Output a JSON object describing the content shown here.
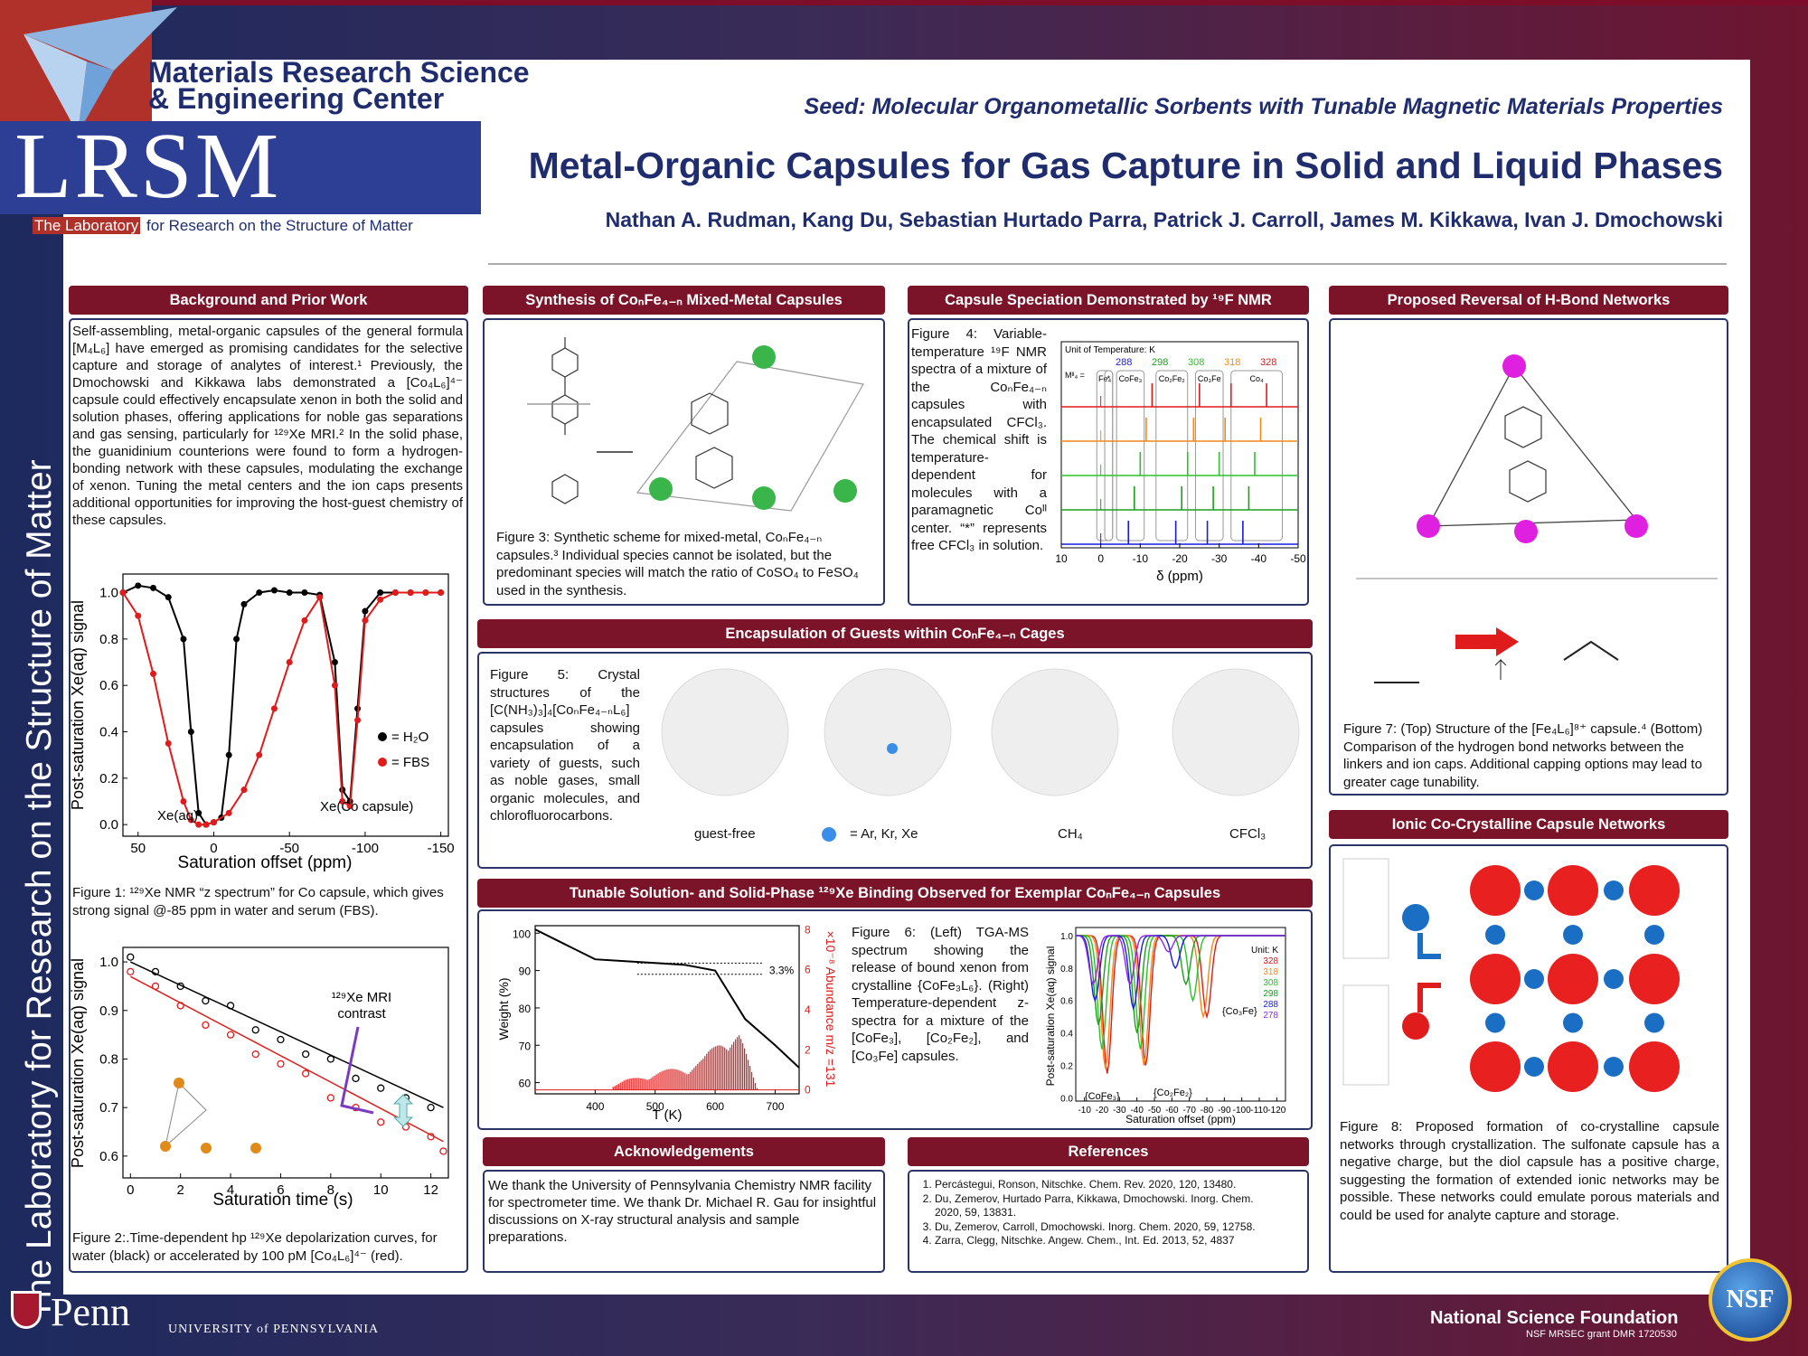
{
  "header": {
    "center_line1": "Materials Research Science",
    "center_line2": "& Engineering Center",
    "lrsm": "LRSM",
    "lab_prefix": "The Laboratory",
    "lab_rest": " for Research on the Structure of Matter",
    "seed": "Seed: Molecular Organometallic Sorbents with Tunable Magnetic Materials Properties",
    "title": "Metal-Organic Capsules for Gas Capture in Solid and Liquid Phases",
    "authors": "Nathan A. Rudman, Kang Du, Sebastian Hurtado Parra, Patrick J. Carroll, James M. Kikkawa, Ivan J. Dmochowski"
  },
  "vertical_text": "The Laboratory for Research on the Structure of Matter",
  "sections": {
    "background": "Background and Prior Work",
    "synthesis": "Synthesis of CoₙFe₄₋ₙ Mixed-Metal Capsules",
    "speciation": "Capsule Speciation Demonstrated by ¹⁹F NMR",
    "reversal": "Proposed Reversal of H-Bond Networks",
    "encapsulation": "Encapsulation of Guests within CoₙFe₄₋ₙ Cages",
    "tunable": "Tunable Solution- and Solid-Phase ¹²⁹Xe Binding Observed for Exemplar CoₙFe₄₋ₙ Capsules",
    "ionic": "Ionic Co-Crystalline Capsule Networks",
    "ack": "Acknowledgements",
    "refs": "References"
  },
  "background_text": "Self-assembling, metal-organic capsules of the general formula [M₄L₆] have emerged as promising candidates for the selective capture and storage of analytes of interest.¹ Previously, the Dmochowski and Kikkawa labs demonstrated a [Co₄L₆]⁴⁻ capsule could effectively encapsulate xenon in both the solid and solution phases, offering applications for noble gas separations and gas sensing, particularly for ¹²⁹Xe MRI.² In the solid phase, the guanidinium counterions were found to form a hydrogen-bonding network with these capsules, modulating the exchange of xenon. Tuning the metal centers and the ion caps presents additional opportunities for improving the host-guest chemistry of these capsules.",
  "figures": {
    "fig1": "Figure 1: ¹²⁹Xe NMR “z spectrum” for Co capsule, which gives strong signal @-85 ppm in water and serum (FBS).",
    "fig2": "Figure 2:.Time-dependent hp ¹²⁹Xe depolarization curves, for water (black) or accelerated by 100 pM [Co₄L₆]⁴⁻ (red).",
    "fig3": "Figure 3: Synthetic scheme for mixed-metal, CoₙFe₄₋ₙ capsules.³ Individual species cannot be isolated, but the predominant species will match the ratio of CoSO₄ to FeSO₄ used in the synthesis.",
    "fig4": "Figure 4: Variable-temperature ¹⁹F NMR spectra of a mixture of the CoₙFe₄₋ₙ capsules with encapsulated CFCl₃. The chemical shift is temperature-dependent for molecules with a paramagnetic Coᴵᴵ center. “*” represents free CFCl₃ in solution.",
    "fig5": "Figure 5: Crystal structures of the [C(NH₃)₃]₄[CoₙFe₄₋ₙL₆] capsules showing encapsulation of a variety of guests, such as noble gases, small organic molecules, and chlorofluorocarbons.",
    "fig6": "Figure 6: (Left) TGA-MS spectrum showing the release of bound xenon from crystalline {CoFe₃L₆}. (Right) Temperature-dependent z-spectra for a mixture of the [CoFe₃], [Co₂Fe₂], and [Co₃Fe] capsules.",
    "fig7": "Figure 7: (Top) Structure of the [Fe₄L₆]⁸⁺ capsule.⁴ (Bottom) Comparison of the hydrogen bond networks between the linkers and ion caps. Additional capping options may lead to greater cage tunability.",
    "fig8": "Figure 8: Proposed formation of co-crystalline capsule networks through crystallization. The sulfonate capsule has a negative charge, but the diol capsule has a positive charge, suggesting the formation of extended ionic networks may be possible. These networks could emulate porous materials and could be used for analyte capture and storage."
  },
  "guest_labels": [
    "guest-free",
    "= Ar, Kr, Xe",
    "CH₄",
    "CFCl₃"
  ],
  "ack_text": "We thank the University of Pennsylvania Chemistry NMR facility for spectrometer time. We thank Dr. Michael R. Gau for insightful discussions on X-ray structural analysis and sample preparations.",
  "references": [
    "Percástegui, Ronson, Nitschke. Chem. Rev. 2020, 120, 13480.",
    "Du, Zemerov, Hurtado Parra, Kikkawa, Dmochowski. Inorg. Chem. 2020, 59, 13831.",
    "Du, Zemerov, Carroll, Dmochowski. Inorg. Chem. 2020, 59, 12758.",
    "Zarra, Clegg, Nitschke. Angew. Chem., Int. Ed. 2013, 52, 4837"
  ],
  "footer": {
    "penn": "Penn",
    "upenn": "UNIVERSITY of PENNSYLVANIA",
    "nsf": "National Science Foundation",
    "grant": "NSF MRSEC grant DMR 1720530",
    "nsf_logo": "NSF"
  },
  "colors": {
    "maroon": "#7c1429",
    "navy": "#1f2d6e",
    "red": "#e01b1b"
  },
  "chart_data": [
    {
      "type": "line",
      "title": "",
      "xlabel": "Saturation offset (ppm)",
      "ylabel": "Post-saturation Xe(aq) signal",
      "xlim": [
        60,
        -155
      ],
      "ylim": [
        -0.05,
        1.08
      ],
      "xticks": [
        50,
        0,
        -50,
        -100,
        -150
      ],
      "yticks": [
        0.0,
        0.2,
        0.4,
        0.6,
        0.8,
        1.0
      ],
      "annotations": [
        "Xe(aq)",
        "Xe(Co capsule)"
      ],
      "series": [
        {
          "name": "= H₂O",
          "color": "#000000",
          "x": [
            60,
            50,
            40,
            30,
            20,
            15,
            10,
            5,
            0,
            -5,
            -10,
            -15,
            -20,
            -30,
            -40,
            -50,
            -60,
            -70,
            -80,
            -85,
            -90,
            -95,
            -100,
            -110,
            -120,
            -130,
            -140,
            -150
          ],
          "y": [
            1.0,
            1.03,
            1.02,
            0.98,
            0.8,
            0.4,
            0.05,
            0.0,
            0.01,
            0.03,
            0.3,
            0.8,
            0.95,
            1.0,
            1.01,
            1.0,
            1.0,
            0.99,
            0.7,
            0.15,
            0.1,
            0.5,
            0.92,
            1.0,
            1.0,
            1.0,
            1.0,
            1.0
          ]
        },
        {
          "name": "= FBS",
          "color": "#e01b1b",
          "x": [
            60,
            50,
            40,
            30,
            20,
            15,
            10,
            5,
            0,
            -10,
            -20,
            -30,
            -40,
            -50,
            -60,
            -70,
            -80,
            -85,
            -90,
            -95,
            -100,
            -110,
            -120,
            -130,
            -140,
            -150
          ],
          "y": [
            1.0,
            0.9,
            0.65,
            0.35,
            0.1,
            0.02,
            0.0,
            0.0,
            0.01,
            0.05,
            0.15,
            0.3,
            0.5,
            0.7,
            0.88,
            0.98,
            0.6,
            0.1,
            0.08,
            0.45,
            0.88,
            0.97,
            1.0,
            1.0,
            1.0,
            1.0
          ]
        }
      ]
    },
    {
      "type": "scatter",
      "title": "",
      "xlabel": "Saturation time (s)",
      "ylabel": "Post-saturation Xe(aq) signal",
      "xlim": [
        -0.3,
        12.7
      ],
      "ylim": [
        0.555,
        1.03
      ],
      "xticks": [
        0,
        2,
        4,
        6,
        8,
        10,
        12
      ],
      "yticks": [
        0.6,
        0.7,
        0.8,
        0.9,
        1.0
      ],
      "annotations": [
        "¹²⁹Xe MRI",
        "contrast"
      ],
      "series": [
        {
          "name": "",
          "color": "#000000",
          "x": [
            0,
            1,
            2,
            3,
            4,
            5,
            6,
            7,
            8,
            9,
            10,
            11,
            12
          ],
          "y": [
            1.01,
            0.98,
            0.95,
            0.92,
            0.91,
            0.86,
            0.84,
            0.81,
            0.8,
            0.76,
            0.74,
            0.72,
            0.7
          ],
          "fit": [
            [
              0,
              1.0
            ],
            [
              12.5,
              0.7
            ]
          ]
        },
        {
          "name": "",
          "color": "#e01b1b",
          "x": [
            0,
            1,
            2,
            3,
            4,
            5,
            6,
            7,
            8,
            9,
            10,
            11,
            12,
            12.5
          ],
          "y": [
            0.98,
            0.95,
            0.91,
            0.87,
            0.85,
            0.81,
            0.79,
            0.77,
            0.72,
            0.7,
            0.67,
            0.66,
            0.64,
            0.61
          ],
          "fit": [
            [
              0,
              0.97
            ],
            [
              12.5,
              0.63
            ]
          ]
        }
      ]
    },
    {
      "type": "line",
      "title": "",
      "xlabel": "δ (ppm)",
      "ylabel": "",
      "xlim": [
        10,
        -50
      ],
      "xticks": [
        10,
        0,
        -10,
        -20,
        -30,
        -40,
        -50
      ],
      "legend_title": "Unit of Temperature: K",
      "legend_row_label": "Mᴵᴵ₄ =",
      "species": [
        "Fe₄",
        "*",
        "CoFe₃",
        "Co₂Fe₂",
        "Co₃Fe",
        "Co₄"
      ],
      "series": [
        {
          "name": "288",
          "color": "#1a1ae0"
        },
        {
          "name": "298",
          "color": "#1aa01a"
        },
        {
          "name": "308",
          "color": "#2cc12c"
        },
        {
          "name": "318",
          "color": "#f08a1a"
        },
        {
          "name": "328",
          "color": "#e01b1b"
        }
      ]
    },
    {
      "type": "line",
      "title": "",
      "xlabel": "T (K)",
      "ylabel": "Weight (%)",
      "y2label": "×10⁻⁸ Abundance m/z =131",
      "xlim": [
        300,
        740
      ],
      "ylim": [
        57,
        102
      ],
      "y2lim": [
        -0.2,
        8.2
      ],
      "xticks": [
        400,
        500,
        600,
        700
      ],
      "yticks": [
        60,
        70,
        80,
        90,
        100
      ],
      "y2ticks": [
        0,
        2,
        4,
        6,
        8
      ],
      "annotations": [
        "3.3%"
      ],
      "series": [
        {
          "name": "Weight",
          "color": "#000000",
          "x": [
            300,
            350,
            400,
            450,
            500,
            550,
            600,
            650,
            700,
            740
          ],
          "y": [
            101,
            97,
            93,
            92.5,
            92,
            91.5,
            90,
            77,
            70,
            64
          ]
        },
        {
          "name": "Abundance",
          "color": "#e01b1b",
          "x": [
            430,
            450,
            500,
            550,
            580,
            600,
            620,
            640,
            660,
            670
          ],
          "y": [
            0.2,
            0.5,
            0.9,
            1.2,
            1.6,
            2.3,
            3.2,
            3.0,
            1.0,
            0.1
          ]
        }
      ]
    },
    {
      "type": "line",
      "title": "",
      "xlabel": "Saturation offset (ppm)",
      "ylabel": "Post-saturation Xe(aq) signal",
      "xlim": [
        -5,
        -125
      ],
      "ylim": [
        -0.02,
        1.05
      ],
      "xticks": [
        -10,
        -20,
        -30,
        -40,
        -50,
        -60,
        -70,
        -80,
        -90,
        -100,
        -110,
        -120
      ],
      "yticks": [
        0.0,
        0.2,
        0.4,
        0.6,
        0.8,
        1.0
      ],
      "legend_title": "Unit: K",
      "annotations": [
        "{CoFe₃}",
        "{Co₂Fe₂}",
        "{Co₃Fe}"
      ],
      "series": [
        {
          "name": "328",
          "color": "#e01b1b",
          "dips": [
            [
              -23,
              0.15
            ],
            [
              -45,
              0.2
            ],
            [
              -80,
              0.5
            ]
          ]
        },
        {
          "name": "318",
          "color": "#f08a1a",
          "dips": [
            [
              -22,
              0.18
            ],
            [
              -44,
              0.2
            ],
            [
              -78,
              0.5
            ]
          ]
        },
        {
          "name": "308",
          "color": "#2cc12c",
          "dips": [
            [
              -20,
              0.3
            ],
            [
              -42,
              0.3
            ],
            [
              -72,
              0.6
            ]
          ]
        },
        {
          "name": "298",
          "color": "#1aa01a",
          "dips": [
            [
              -18,
              0.45
            ],
            [
              -40,
              0.4
            ],
            [
              -68,
              0.7
            ]
          ]
        },
        {
          "name": "288",
          "color": "#1a1ae0",
          "dips": [
            [
              -16,
              0.6
            ],
            [
              -38,
              0.55
            ],
            [
              -62,
              0.8
            ]
          ]
        },
        {
          "name": "278",
          "color": "#8b2be2",
          "dips": [
            [
              -15,
              0.7
            ],
            [
              -36,
              0.7
            ],
            [
              -58,
              0.9
            ]
          ]
        }
      ]
    }
  ]
}
